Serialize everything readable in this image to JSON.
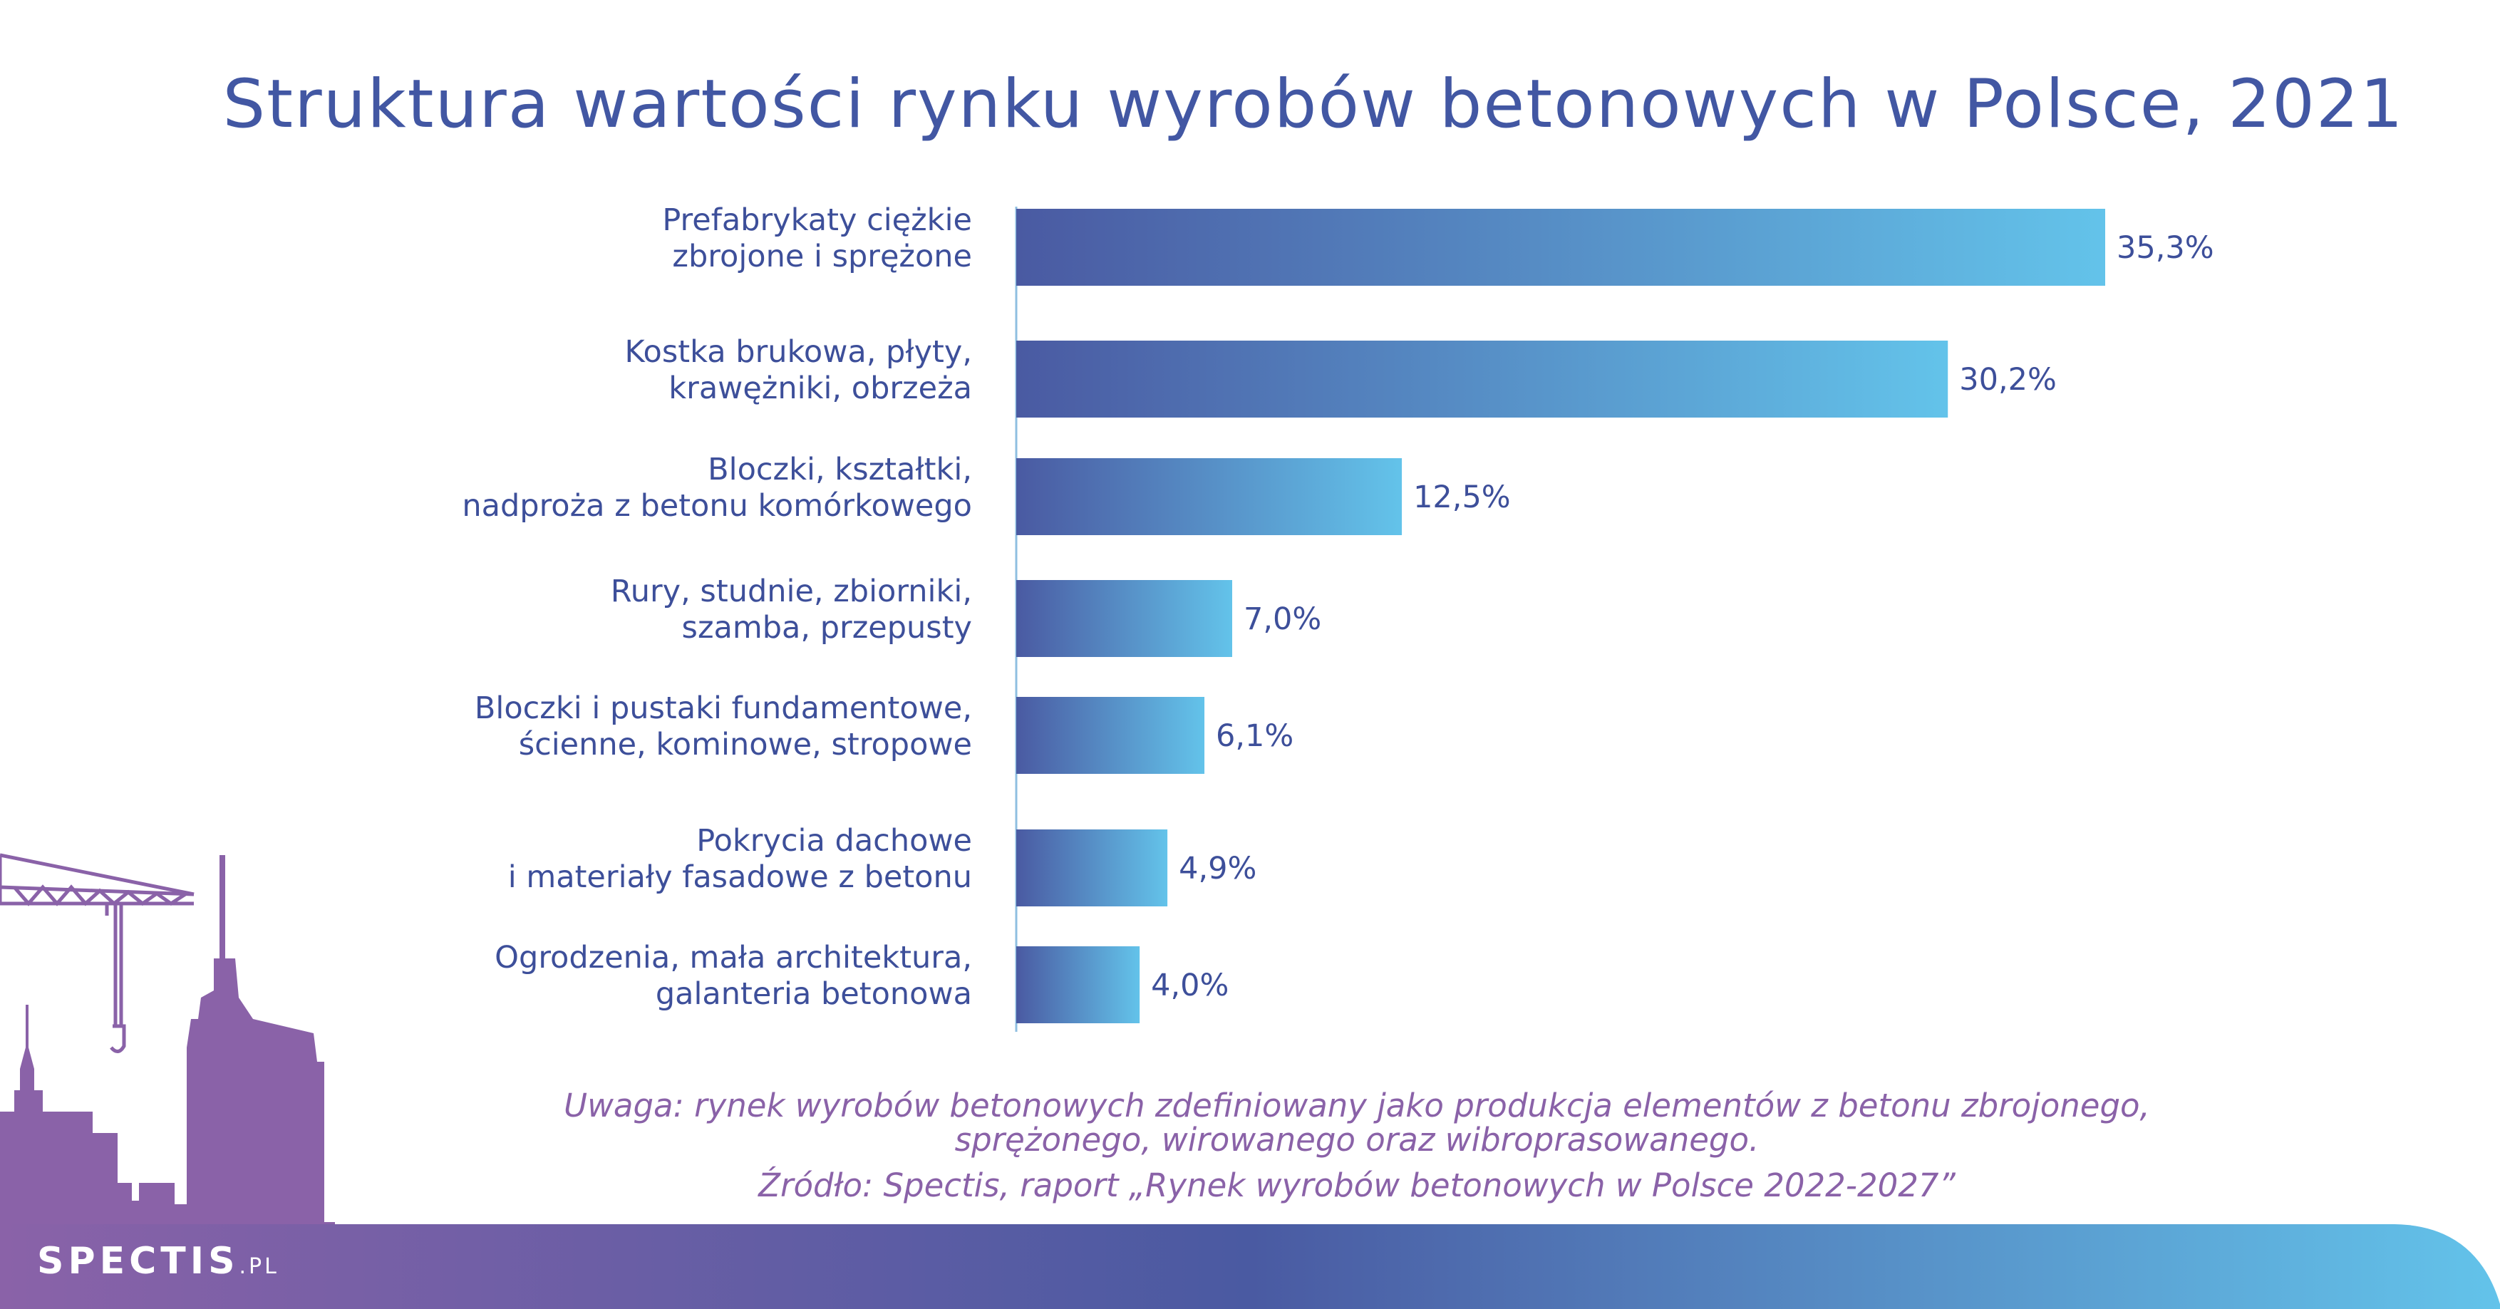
{
  "colors": {
    "title": "#4257a3",
    "labels": "#3d4f9a",
    "note": "#8a62a8",
    "bar_start": "#4a5aa2",
    "bar_end": "#63c3ea",
    "skyline": "#8a62a8",
    "footer_start": "#8a62a8",
    "footer_mid": "#4a5aa2",
    "footer_end": "#63c3ea"
  },
  "brand": {
    "name": "SPECTIS",
    "suffix": ".PL"
  },
  "footnote": {
    "note_line1": "Uwaga: rynek wyrobów betonowych zdefiniowany jako produkcja elementów z betonu zbrojonego,",
    "note_line2": "sprężonego, wirowanego oraz wibroprasowanego.",
    "source": "Źródło: Spectis, raport „Rynek wyrobów betonowych w Polsce 2022-2027”"
  },
  "chart_data": {
    "type": "bar",
    "orientation": "horizontal",
    "title": "Struktura wartości rynku wyrobów betonowych w Polsce, 2021",
    "unit": "%",
    "categories": [
      [
        "Prefabrykaty ciężkie",
        "zbrojone i sprężone"
      ],
      [
        "Kostka brukowa, płyty,",
        "krawężniki, obrzeża"
      ],
      [
        "Bloczki, kształtki,",
        "nadproża z betonu komórkowego"
      ],
      [
        "Rury, studnie, zbiorniki,",
        "szamba, przepusty"
      ],
      [
        "Bloczki i pustaki fundamentowe,",
        "ścienne, kominowe, stropowe"
      ],
      [
        "Pokrycia dachowe",
        "i materiały fasadowe z betonu"
      ],
      [
        "Ogrodzenia, mała architektura,",
        "galanteria betonowa"
      ]
    ],
    "values": [
      35.3,
      30.2,
      12.5,
      7.0,
      6.1,
      4.9,
      4.0
    ],
    "value_labels": [
      "35,3%",
      "30,2%",
      "12,5%",
      "7,0%",
      "6,1%",
      "4,9%",
      "4,0%"
    ],
    "grid": false,
    "legend": "none"
  }
}
